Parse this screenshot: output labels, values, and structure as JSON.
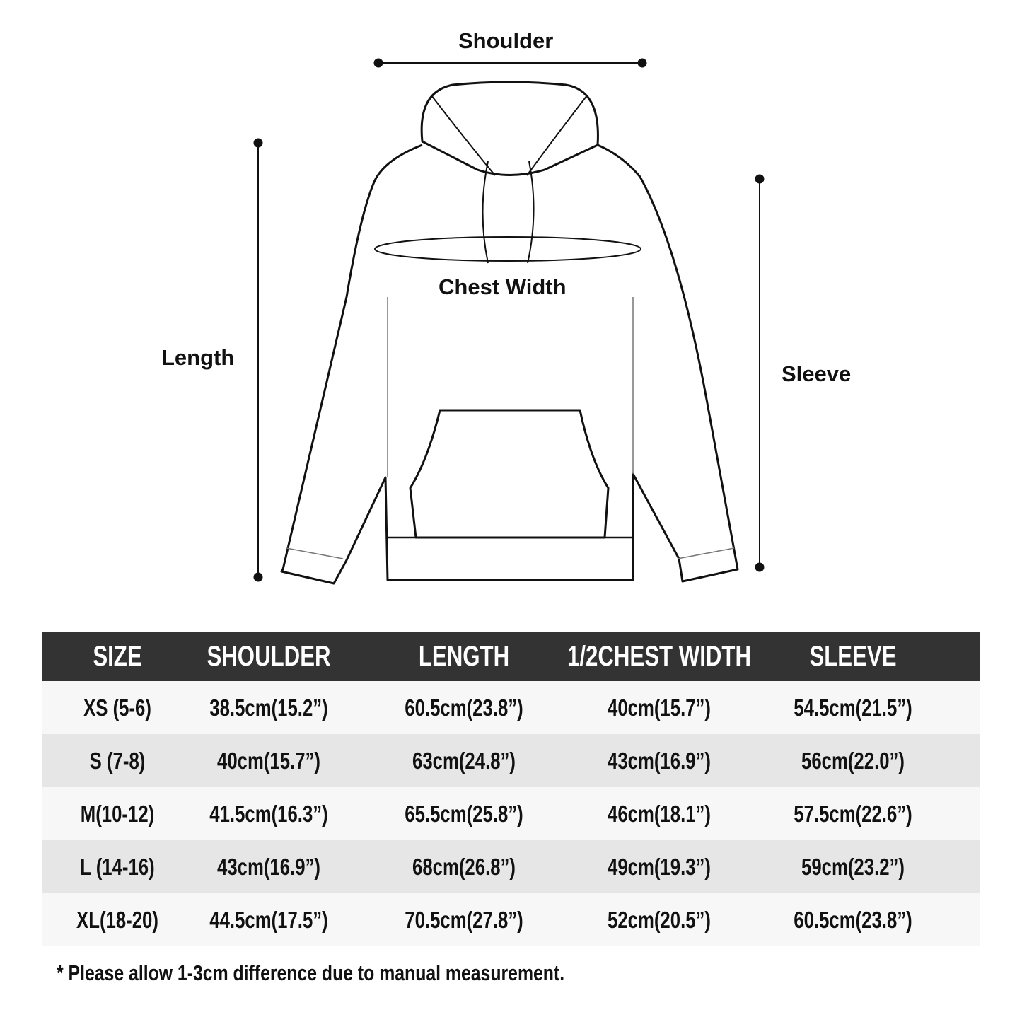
{
  "diagram": {
    "labels": {
      "shoulder": "Shoulder",
      "chest": "Chest Width",
      "length": "Length",
      "sleeve": "Sleeve"
    }
  },
  "table": {
    "headers": [
      "SIZE",
      "SHOULDER",
      "LENGTH",
      "1/2CHEST WIDTH",
      "SLEEVE"
    ],
    "rows": [
      [
        "XS  (5-6)",
        "38.5cm(15.2”)",
        "60.5cm(23.8”)",
        "40cm(15.7”)",
        "54.5cm(21.5”)"
      ],
      [
        "S   (7-8)",
        "40cm(15.7”)",
        "63cm(24.8”)",
        "43cm(16.9”)",
        "56cm(22.0”)"
      ],
      [
        "M(10-12)",
        "41.5cm(16.3”)",
        "65.5cm(25.8”)",
        "46cm(18.1”)",
        "57.5cm(22.6”)"
      ],
      [
        "L (14-16)",
        "43cm(16.9”)",
        "68cm(26.8”)",
        "49cm(19.3”)",
        "59cm(23.2”)"
      ],
      [
        "XL(18-20)",
        "44.5cm(17.5”)",
        "70.5cm(27.8”)",
        "52cm(20.5”)",
        "60.5cm(23.8”)"
      ]
    ],
    "colors": {
      "header_bg": "#333333",
      "row_light": "#f7f7f7",
      "row_dark": "#e6e6e6"
    }
  },
  "note": "* Please allow 1-3cm difference due to manual measurement."
}
